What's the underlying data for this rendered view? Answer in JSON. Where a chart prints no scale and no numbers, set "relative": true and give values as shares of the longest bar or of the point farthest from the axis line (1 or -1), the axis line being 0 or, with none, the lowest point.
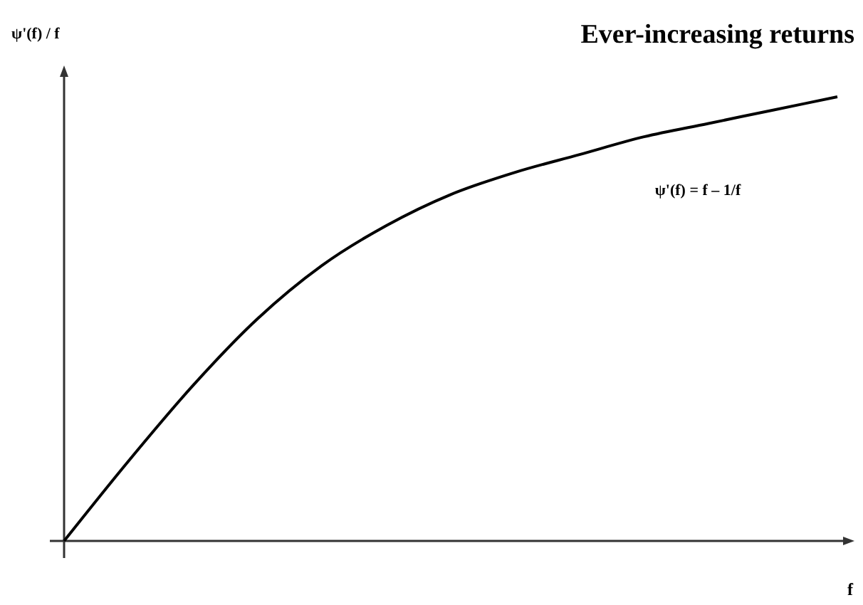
{
  "chart_data": {
    "type": "line",
    "title": "Ever-increasing returns",
    "xlabel": "f",
    "ylabel": "ψ'(f) / f",
    "annotations": [
      "ψ'(f) = f – 1/f"
    ],
    "relative": true,
    "categories": [
      null,
      null,
      null,
      null,
      null,
      null,
      null,
      null,
      null,
      null,
      null,
      null,
      null
    ],
    "series": [
      {
        "color": "#000000",
        "values": [
          0,
          0.18,
          0.35,
          0.5,
          0.62,
          0.71,
          0.78,
          0.83,
          0.87,
          0.91,
          0.94,
          0.97,
          1
        ]
      }
    ],
    "grid": false,
    "marker": "none",
    "line_style": "solid"
  }
}
